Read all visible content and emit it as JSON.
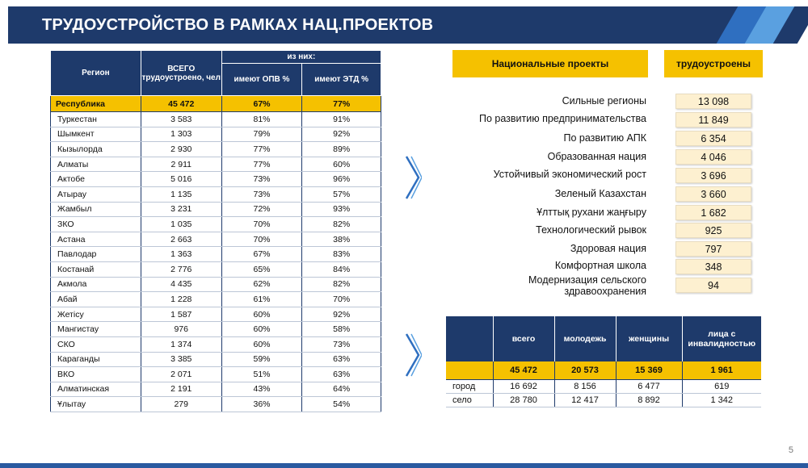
{
  "title": "ТРУДОУСТРОЙСТВО В РАМКАХ НАЦ.ПРОЕКТОВ",
  "page_number": "5",
  "left_table": {
    "headers": {
      "region": "Регион",
      "total": "ВСЕГО трудоустроено, чел",
      "of_them": "из них:",
      "opv": "имеют ОПВ %",
      "etd": "имеют ЭТД %"
    },
    "total_row": {
      "region": "Республика",
      "total": "45 472",
      "opv": "67%",
      "etd": "77%"
    },
    "rows": [
      {
        "region": "Туркестан",
        "total": "3 583",
        "opv": "81%",
        "etd": "91%"
      },
      {
        "region": "Шымкент",
        "total": "1 303",
        "opv": "79%",
        "etd": "92%"
      },
      {
        "region": "Кызылорда",
        "total": "2 930",
        "opv": "77%",
        "etd": "89%"
      },
      {
        "region": "Алматы",
        "total": "2 911",
        "opv": "77%",
        "etd": "60%"
      },
      {
        "region": "Актобе",
        "total": "5 016",
        "opv": "73%",
        "etd": "96%"
      },
      {
        "region": "Атырау",
        "total": "1 135",
        "opv": "73%",
        "etd": "57%"
      },
      {
        "region": "Жамбыл",
        "total": "3 231",
        "opv": "72%",
        "etd": "93%"
      },
      {
        "region": "ЗКО",
        "total": "1 035",
        "opv": "70%",
        "etd": "82%"
      },
      {
        "region": "Астана",
        "total": "2 663",
        "opv": "70%",
        "etd": "38%"
      },
      {
        "region": "Павлодар",
        "total": "1 363",
        "opv": "67%",
        "etd": "83%"
      },
      {
        "region": "Костанай",
        "total": "2 776",
        "opv": "65%",
        "etd": "84%"
      },
      {
        "region": "Акмола",
        "total": "4 435",
        "opv": "62%",
        "etd": "82%"
      },
      {
        "region": "Абай",
        "total": "1 228",
        "opv": "61%",
        "etd": "70%"
      },
      {
        "region": "Жетісу",
        "total": "1 587",
        "opv": "60%",
        "etd": "92%"
      },
      {
        "region": "Мангистау",
        "total": "976",
        "opv": "60%",
        "etd": "58%"
      },
      {
        "region": "СКО",
        "total": "1 374",
        "opv": "60%",
        "etd": "73%"
      },
      {
        "region": "Караганды",
        "total": "3 385",
        "opv": "59%",
        "etd": "63%"
      },
      {
        "region": "ВКО",
        "total": "2 071",
        "opv": "51%",
        "etd": "63%"
      },
      {
        "region": "Алматинская",
        "total": "2 191",
        "opv": "43%",
        "etd": "64%"
      },
      {
        "region": "Ұлытау",
        "total": "279",
        "opv": "36%",
        "etd": "54%"
      }
    ]
  },
  "projects": {
    "header_projects": "Национальные проекты",
    "header_employed": "трудоустроены",
    "items": [
      {
        "name": "Сильные регионы",
        "value": "13 098"
      },
      {
        "name": "По развитию предпринимательства",
        "value": "11 849"
      },
      {
        "name": "По развитию АПК",
        "value": "6 354"
      },
      {
        "name": "Образованная нация",
        "value": "4 046"
      },
      {
        "name": "Устойчивый экономический рост",
        "value": "3 696"
      },
      {
        "name": "Зеленый Казахстан",
        "value": "3 660"
      },
      {
        "name": "Ұлттық рухани жаңғыру",
        "value": "1 682"
      },
      {
        "name": "Технологический рывок",
        "value": "925"
      },
      {
        "name": "Здоровая нация",
        "value": "797"
      },
      {
        "name": "Комфортная школа",
        "value": "348"
      },
      {
        "name_line1": "Модернизация сельского",
        "name_line2": "здравоохранения",
        "value": "94"
      }
    ]
  },
  "right_table": {
    "headers": [
      "всего",
      "молодежь",
      "женщины",
      "лица с инвалидностью"
    ],
    "total_row": [
      "45 472",
      "20 573",
      "15 369",
      "1 961"
    ],
    "rows": [
      {
        "label": "город",
        "values": [
          "16 692",
          "8 156",
          "6 477",
          "619"
        ]
      },
      {
        "label": "село",
        "values": [
          "28 780",
          "12 417",
          "8 892",
          "1 342"
        ]
      }
    ]
  },
  "colors": {
    "navy": "#1e3a6b",
    "yellow": "#f5c100"
  }
}
